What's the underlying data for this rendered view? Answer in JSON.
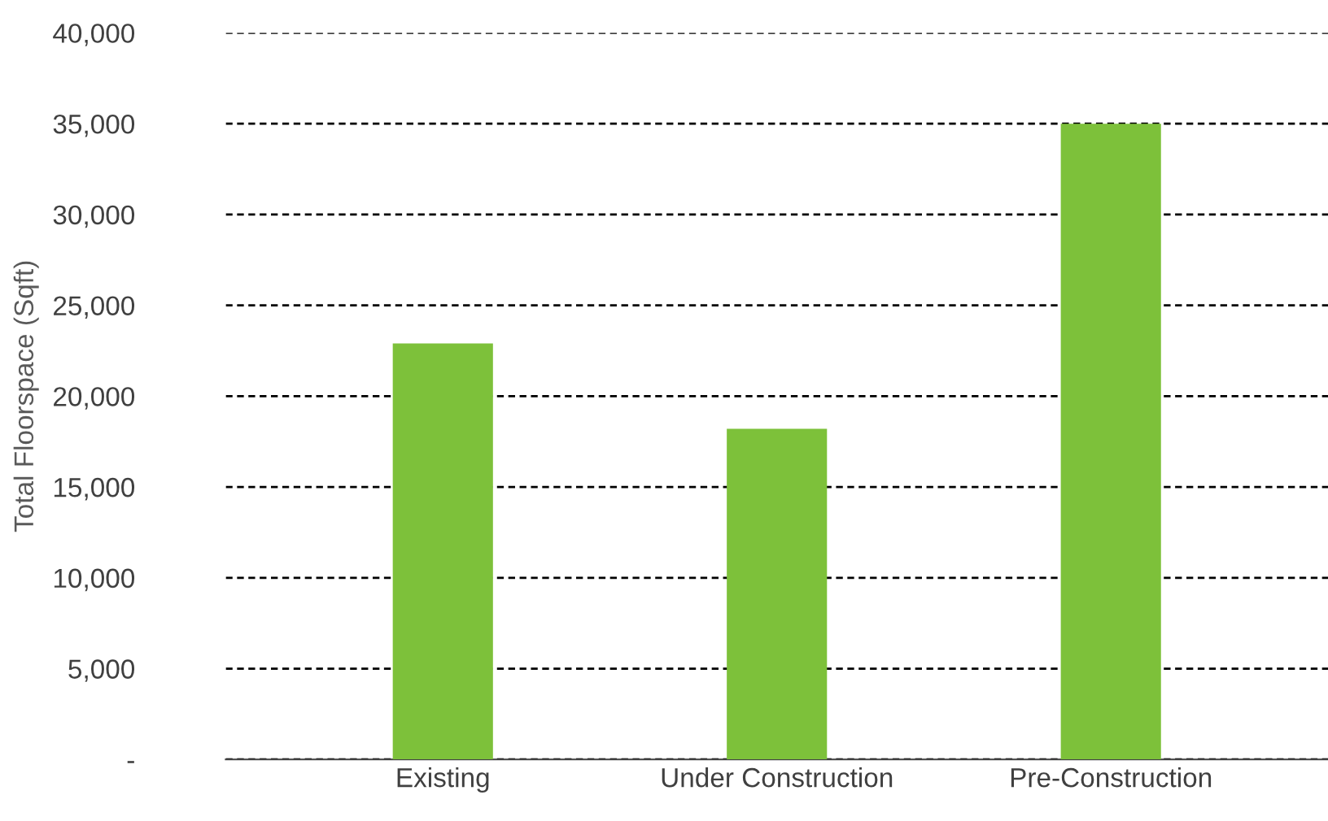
{
  "chart_data": {
    "type": "bar",
    "ylabel": "Total Floorspace (Sqft)",
    "categories": [
      "Existing",
      "Under Construction",
      "Pre-Construction"
    ],
    "values": [
      22900,
      18200,
      35000
    ],
    "color": "#7dc13a",
    "ylim": [
      0,
      40000
    ],
    "yticks": [
      {
        "value": 0,
        "label": "-"
      },
      {
        "value": 5000,
        "label": "5,000"
      },
      {
        "value": 10000,
        "label": "10,000"
      },
      {
        "value": 15000,
        "label": "15,000"
      },
      {
        "value": 20000,
        "label": "20,000"
      },
      {
        "value": 25000,
        "label": "25,000"
      },
      {
        "value": 30000,
        "label": "30,000"
      },
      {
        "value": 35000,
        "label": "35,000"
      },
      {
        "value": 40000,
        "label": "40,000"
      }
    ],
    "grid": "y"
  }
}
